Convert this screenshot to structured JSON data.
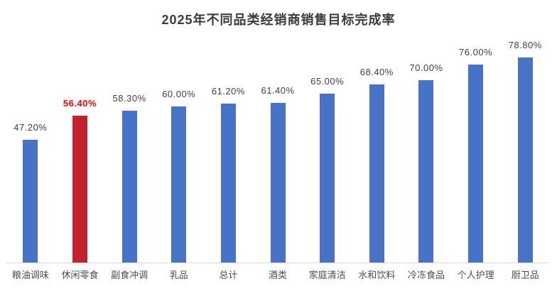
{
  "title": "2025年不同品类经销商销售目标完成率",
  "chart_data": {
    "type": "bar",
    "title": "2025年不同品类经销商销售目标完成率",
    "categories": [
      "粮油调味",
      "休闲零食",
      "副食冲调",
      "乳品",
      "总计",
      "酒类",
      "家庭清洁",
      "水和饮料",
      "冷冻食品",
      "个人护理",
      "厨卫品"
    ],
    "values": [
      47.2,
      56.4,
      58.3,
      60.0,
      61.2,
      61.4,
      65.0,
      68.4,
      70.0,
      76.0,
      78.8
    ],
    "data_labels": [
      "47.20%",
      "56.40%",
      "58.30%",
      "60.00%",
      "61.20%",
      "61.40%",
      "65.00%",
      "68.40%",
      "70.00%",
      "76.00%",
      "78.80%"
    ],
    "highlight": {
      "index": 1,
      "category": "休闲零食",
      "bar_color": "#c5202e",
      "label_color": "#ff0000"
    },
    "colors": {
      "bar": "#4673c8",
      "data_label": "#404040",
      "category_label": "#4d4d4d",
      "axis_line": "#d9d9d9",
      "title": "#3b3b3b",
      "background": "#ffffff"
    },
    "xlabel": "",
    "ylabel": "",
    "ylim": [
      0,
      90
    ],
    "y_axis_visible": false,
    "gridlines": false,
    "legend": false
  }
}
